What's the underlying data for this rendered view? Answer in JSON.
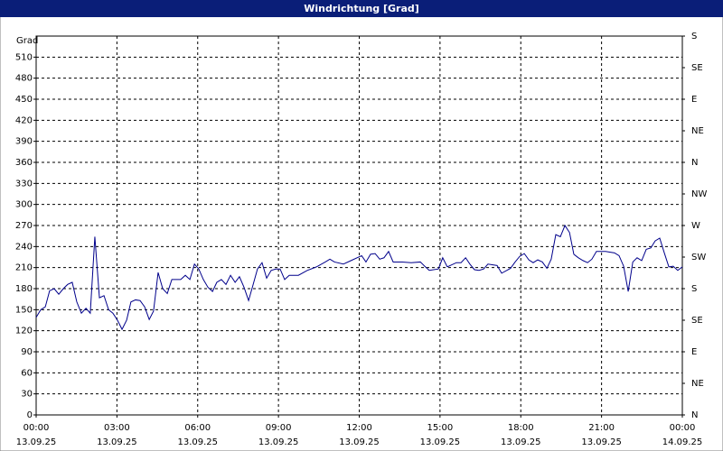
{
  "chart_data": {
    "type": "line",
    "title": "Windrichtung [Grad]",
    "ylabel": "Grad",
    "xlim": [
      0,
      24
    ],
    "xticks": [
      {
        "value": 0,
        "label": "00:00"
      },
      {
        "value": 3,
        "label": "03:00"
      },
      {
        "value": 6,
        "label": "06:00"
      },
      {
        "value": 9,
        "label": "09:00"
      },
      {
        "value": 12,
        "label": "12:00"
      },
      {
        "value": 15,
        "label": "15:00"
      },
      {
        "value": 18,
        "label": "18:00"
      },
      {
        "value": 21,
        "label": "21:00"
      },
      {
        "value": 24,
        "label": "00:00"
      }
    ],
    "xtick_dates": [
      "13.09.25",
      "13.09.25",
      "13.09.25",
      "13.09.25",
      "13.09.25",
      "13.09.25",
      "13.09.25",
      "13.09.25",
      "14.09.25"
    ],
    "ylim": [
      0,
      540
    ],
    "yticks": [
      0,
      30,
      60,
      90,
      120,
      150,
      180,
      210,
      240,
      270,
      300,
      330,
      360,
      390,
      420,
      450,
      480,
      510
    ],
    "y2lim": [
      0,
      540
    ],
    "y2ticks": [
      {
        "value": 0,
        "label": "N"
      },
      {
        "value": 45,
        "label": "NE"
      },
      {
        "value": 90,
        "label": "E"
      },
      {
        "value": 135,
        "label": "SE"
      },
      {
        "value": 180,
        "label": "S"
      },
      {
        "value": 225,
        "label": "SW"
      },
      {
        "value": 270,
        "label": "W"
      },
      {
        "value": 315,
        "label": "NW"
      },
      {
        "value": 360,
        "label": "N"
      },
      {
        "value": 405,
        "label": "NE"
      },
      {
        "value": 450,
        "label": "E"
      },
      {
        "value": 495,
        "label": "SE"
      },
      {
        "value": 540,
        "label": "S"
      }
    ],
    "grid": true,
    "x": [
      0,
      0.17,
      0.34,
      0.5,
      0.67,
      0.84,
      1.01,
      1.17,
      1.34,
      1.51,
      1.68,
      1.85,
      2.01,
      2.18,
      2.35,
      2.52,
      2.69,
      2.85,
      3.02,
      3.19,
      3.36,
      3.52,
      3.69,
      3.86,
      4.03,
      4.2,
      4.36,
      4.53,
      4.7,
      4.87,
      5.04,
      5.2,
      5.37,
      5.54,
      5.71,
      5.88,
      6.04,
      6.21,
      6.38,
      6.55,
      6.71,
      6.88,
      7.05,
      7.22,
      7.39,
      7.55,
      7.72,
      7.89,
      8.06,
      8.22,
      8.39,
      8.56,
      8.73,
      8.9,
      9.06,
      9.23,
      9.4,
      9.74,
      10.07,
      10.41,
      10.74,
      10.91,
      11.08,
      11.41,
      11.75,
      12.09,
      12.25,
      12.42,
      12.59,
      12.76,
      12.92,
      13.09,
      13.26,
      13.6,
      13.93,
      14.27,
      14.43,
      14.6,
      14.94,
      15.1,
      15.27,
      15.61,
      15.78,
      15.95,
      16.11,
      16.28,
      16.45,
      16.62,
      16.78,
      17.12,
      17.29,
      17.62,
      17.79,
      17.96,
      18.13,
      18.3,
      18.46,
      18.63,
      18.8,
      18.97,
      19.13,
      19.3,
      19.47,
      19.64,
      19.81,
      19.97,
      20.14,
      20.31,
      20.48,
      20.64,
      20.81,
      21.15,
      21.48,
      21.65,
      21.82,
      21.99,
      22.16,
      22.32,
      22.49,
      22.66,
      22.83,
      22.99,
      23.16,
      23.33,
      23.5,
      23.66,
      23.83,
      24
    ],
    "series": [
      {
        "color": "#00008b",
        "values": [
          139,
          150,
          154,
          177,
          180,
          172,
          180,
          186,
          189,
          161,
          145,
          152,
          145,
          254,
          167,
          170,
          150,
          145,
          135,
          122,
          135,
          161,
          164,
          163,
          154,
          136,
          148,
          203,
          180,
          173,
          193,
          193,
          193,
          199,
          193,
          215,
          208,
          193,
          182,
          176,
          189,
          193,
          186,
          199,
          189,
          197,
          182,
          163,
          186,
          208,
          217,
          195,
          206,
          208,
          208,
          193,
          199,
          199,
          206,
          211,
          218,
          222,
          218,
          215,
          221,
          227,
          218,
          229,
          230,
          222,
          224,
          233,
          218,
          218,
          217,
          218,
          212,
          206,
          208,
          224,
          211,
          217,
          217,
          224,
          215,
          207,
          206,
          208,
          215,
          213,
          202,
          209,
          218,
          226,
          230,
          221,
          217,
          221,
          218,
          209,
          222,
          257,
          254,
          270,
          260,
          229,
          224,
          220,
          217,
          222,
          233,
          233,
          231,
          227,
          212,
          176,
          218,
          224,
          220,
          236,
          238,
          248,
          252,
          231,
          211,
          212,
          206,
          211
        ]
      }
    ]
  }
}
